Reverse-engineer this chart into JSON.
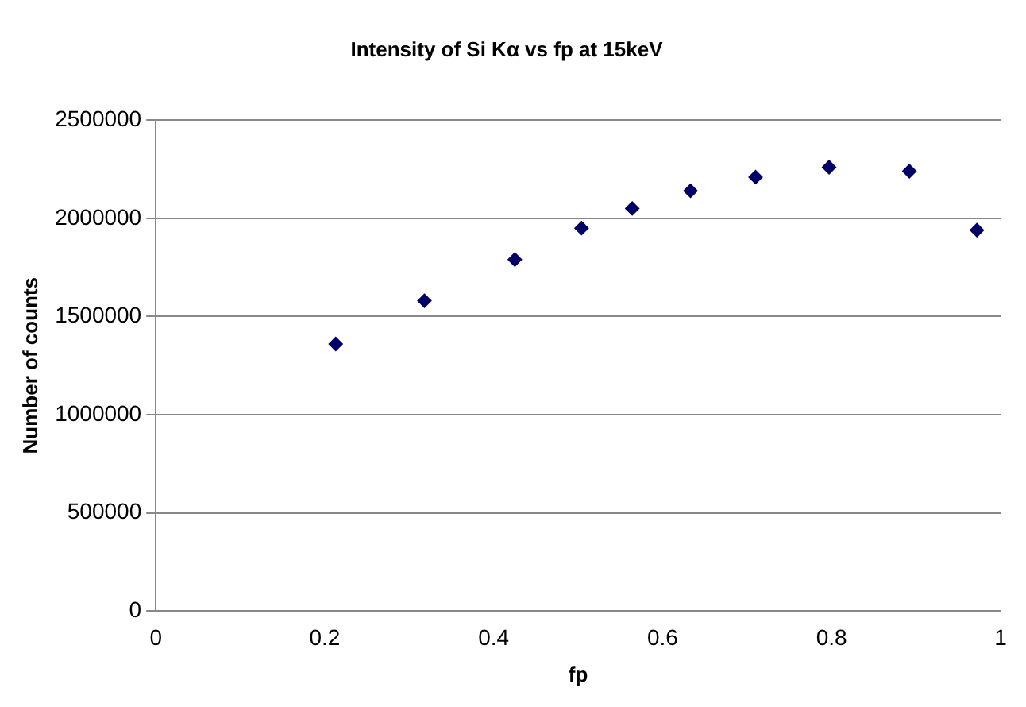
{
  "chart_data": {
    "type": "scatter",
    "title": "Intensity of Si Kα vs fp at 15keV",
    "xlabel": "fp",
    "ylabel": "Number of counts",
    "x": [
      0.213,
      0.318,
      0.425,
      0.504,
      0.564,
      0.633,
      0.71,
      0.797,
      0.892,
      0.972
    ],
    "series": [
      {
        "color": "#000066",
        "values": [
          1360000,
          1580000,
          1790000,
          1950000,
          2050000,
          2140000,
          2210000,
          2260000,
          2240000,
          1940000
        ]
      }
    ],
    "xlim": [
      0,
      1
    ],
    "xticks": [
      0,
      0.2,
      0.4,
      0.6,
      0.8,
      1
    ],
    "ylim": [
      0,
      2500000
    ],
    "yticks": [
      0,
      500000,
      1000000,
      1500000,
      2000000,
      2500000
    ],
    "grid": "y",
    "marker": "diamond",
    "legend": false
  }
}
